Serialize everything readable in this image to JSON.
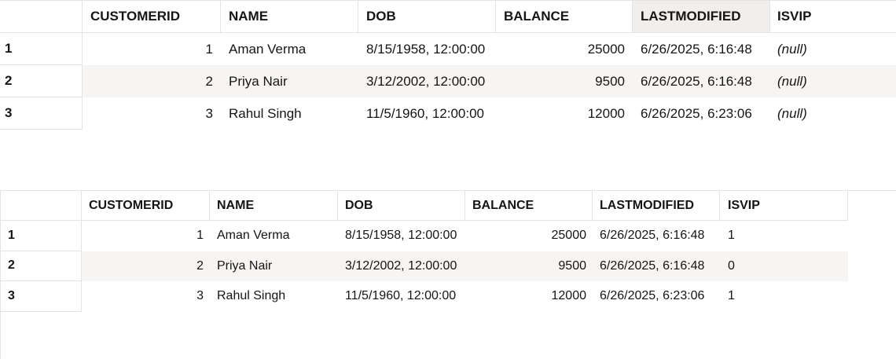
{
  "grid1": {
    "columns": [
      "CUSTOMERID",
      "NAME",
      "DOB",
      "BALANCE",
      "LASTMODIFIED",
      "ISVIP"
    ],
    "rows": [
      {
        "num": "1",
        "customerid": "1",
        "name": "Aman Verma",
        "dob": "8/15/1958, 12:00:00",
        "balance": "25000",
        "lastmodified": "6/26/2025, 6:16:48",
        "isvip": "(null)"
      },
      {
        "num": "2",
        "customerid": "2",
        "name": "Priya Nair",
        "dob": "3/12/2002, 12:00:00",
        "balance": "9500",
        "lastmodified": "6/26/2025, 6:16:48",
        "isvip": "(null)"
      },
      {
        "num": "3",
        "customerid": "3",
        "name": "Rahul Singh",
        "dob": "11/5/1960, 12:00:00",
        "balance": "12000",
        "lastmodified": "6/26/2025, 6:23:06",
        "isvip": "(null)"
      }
    ]
  },
  "grid2": {
    "columns": [
      "CUSTOMERID",
      "NAME",
      "DOB",
      "BALANCE",
      "LASTMODIFIED",
      "ISVIP"
    ],
    "rows": [
      {
        "num": "1",
        "customerid": "1",
        "name": "Aman Verma",
        "dob": "8/15/1958, 12:00:00",
        "balance": "25000",
        "lastmodified": "6/26/2025, 6:16:48",
        "isvip": "1"
      },
      {
        "num": "2",
        "customerid": "2",
        "name": "Priya Nair",
        "dob": "3/12/2002, 12:00:00",
        "balance": "9500",
        "lastmodified": "6/26/2025, 6:16:48",
        "isvip": "0"
      },
      {
        "num": "3",
        "customerid": "3",
        "name": "Rahul Singh",
        "dob": "11/5/1960, 12:00:00",
        "balance": "12000",
        "lastmodified": "6/26/2025, 6:23:06",
        "isvip": "1"
      }
    ]
  },
  "colors": {
    "header_sorted_bg": "#f1efed",
    "alt_row_bg": "#f6f5f4",
    "border": "#e6e4e1",
    "text": "#161513"
  }
}
